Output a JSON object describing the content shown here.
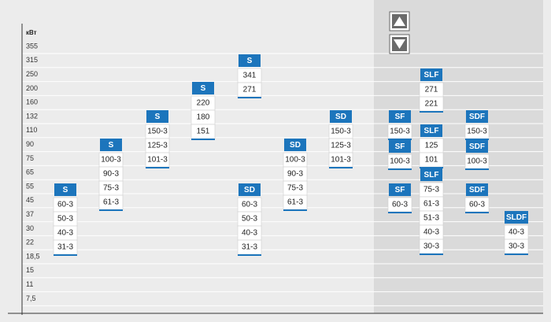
{
  "axis": {
    "unit": "кВт",
    "labels": [
      "355",
      "315",
      "250",
      "200",
      "160",
      "132",
      "110",
      "90",
      "75",
      "65",
      "55",
      "45",
      "37",
      "30",
      "22",
      "18,5",
      "15",
      "11",
      "7,5"
    ]
  },
  "groups": [
    {
      "header": "S",
      "items": [
        "60-3",
        "50-3",
        "40-3",
        "31-3"
      ]
    },
    {
      "header": "S",
      "items": [
        "100-3",
        "90-3",
        "75-3",
        "61-3"
      ]
    },
    {
      "header": "S",
      "items": [
        "150-3",
        "125-3",
        "101-3"
      ]
    },
    {
      "header": "S",
      "items": [
        "220",
        "180",
        "151"
      ]
    },
    {
      "header": "S",
      "items": [
        "341",
        "271"
      ]
    },
    {
      "header": "SD",
      "items": [
        "60-3",
        "50-3",
        "40-3",
        "31-3"
      ]
    },
    {
      "header": "SD",
      "items": [
        "100-3",
        "90-3",
        "75-3",
        "61-3"
      ]
    },
    {
      "header": "SD",
      "items": [
        "150-3",
        "125-3",
        "101-3"
      ]
    },
    {
      "header": "SF",
      "items": [
        "150-3"
      ]
    },
    {
      "header": "SF",
      "items": [
        "100-3"
      ]
    },
    {
      "header": "SF",
      "items": [
        "60-3"
      ]
    },
    {
      "header": "SLF",
      "items": [
        "271",
        "221"
      ]
    },
    {
      "header": "SLF",
      "items": [
        "125",
        "101"
      ]
    },
    {
      "header": "SLF",
      "items": [
        "75-3",
        "61-3",
        "51-3",
        "40-3",
        "30-3"
      ]
    },
    {
      "header": "SDF",
      "items": [
        "150-3"
      ]
    },
    {
      "header": "SDF",
      "items": [
        "100-3"
      ]
    },
    {
      "header": "SDF",
      "items": [
        "60-3"
      ]
    },
    {
      "header": "SLDF",
      "items": [
        "40-3",
        "30-3"
      ]
    }
  ]
}
